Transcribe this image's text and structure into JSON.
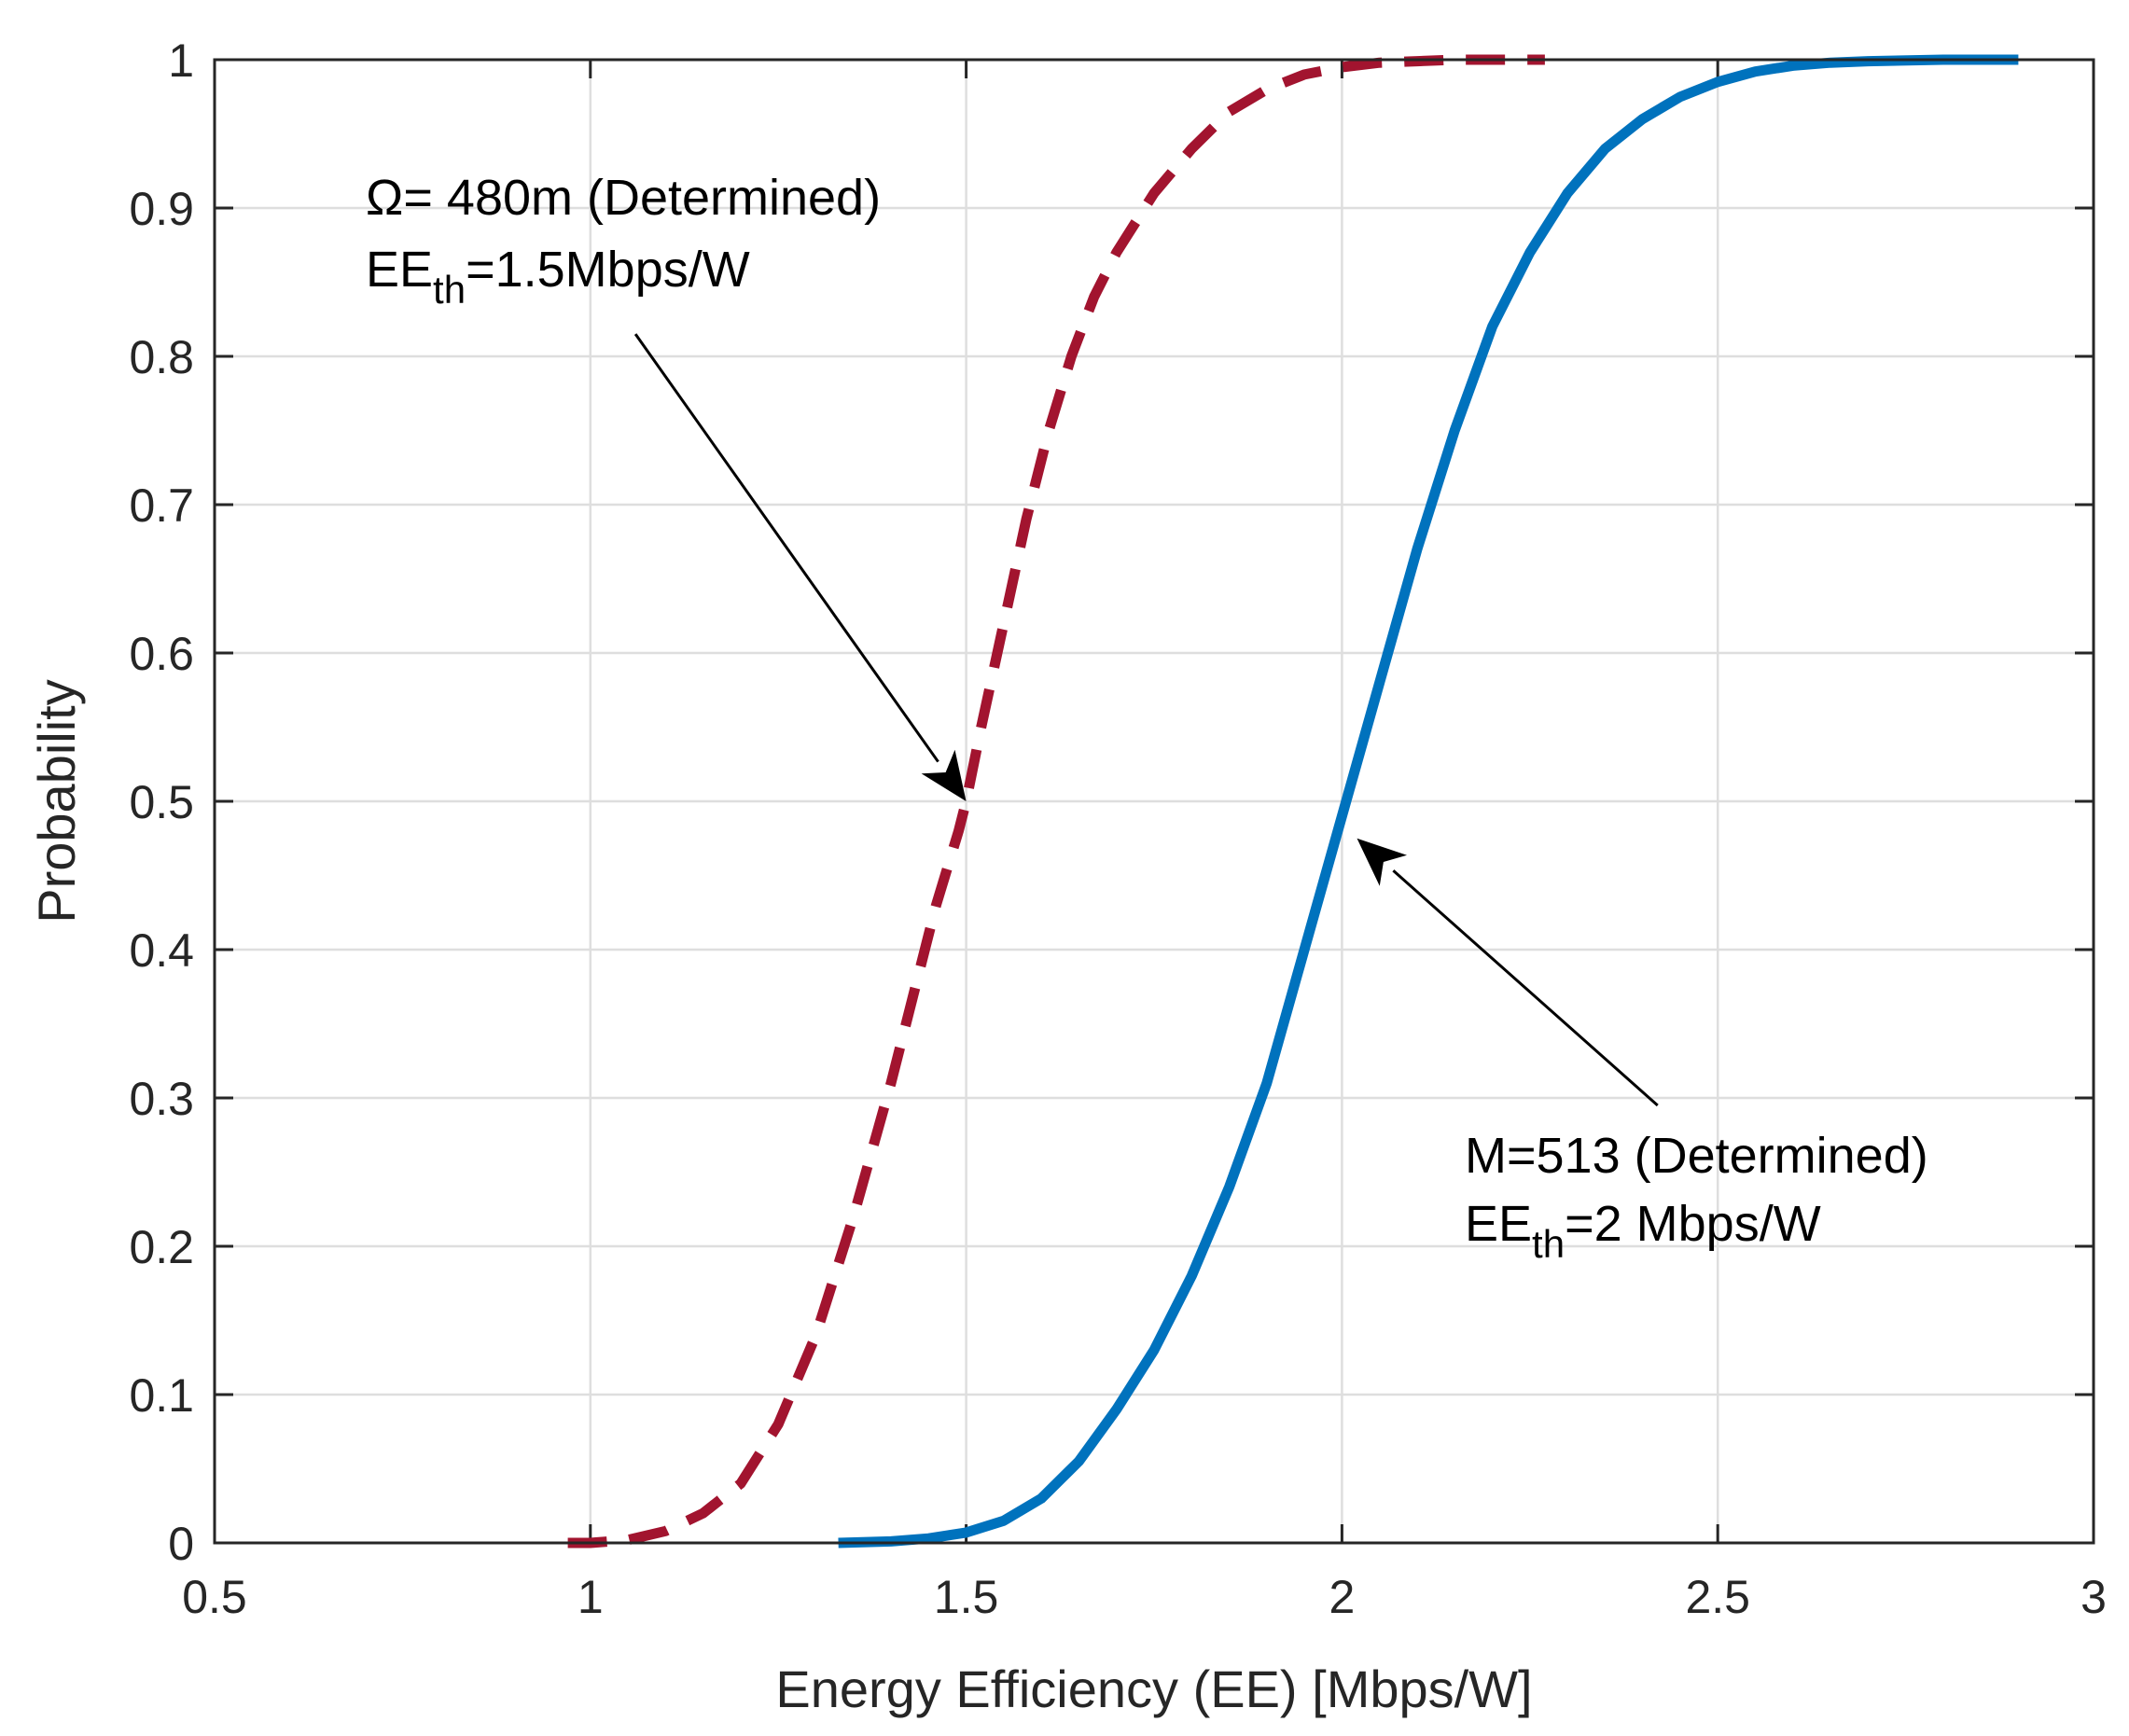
{
  "chart_data": {
    "type": "line",
    "title": "",
    "xlabel": "Energy Efficiency (EE) [Mbps/W]",
    "ylabel": "Probability",
    "xlim": [
      0.5,
      3
    ],
    "ylim": [
      0,
      1
    ],
    "grid": true,
    "xticks": [
      "0.5",
      "1",
      "1.5",
      "2",
      "2.5",
      "3"
    ],
    "yticks": [
      "0",
      "0.1",
      "0.2",
      "0.3",
      "0.4",
      "0.5",
      "0.6",
      "0.7",
      "0.8",
      "0.9",
      "1"
    ],
    "series": [
      {
        "name": "Omega = 480m (Determined), EE_th = 1.5 Mbps/W",
        "color": "#a2142f",
        "style": "dashed",
        "x": [
          0.97,
          1.0,
          1.05,
          1.1,
          1.15,
          1.2,
          1.25,
          1.3,
          1.35,
          1.4,
          1.43,
          1.46,
          1.49,
          1.5,
          1.52,
          1.55,
          1.58,
          1.61,
          1.64,
          1.67,
          1.7,
          1.75,
          1.8,
          1.85,
          1.9,
          1.95,
          2.0,
          2.05,
          2.1,
          2.15,
          2.2,
          2.27
        ],
        "y": [
          0.0,
          0.0,
          0.002,
          0.008,
          0.02,
          0.04,
          0.08,
          0.14,
          0.22,
          0.31,
          0.37,
          0.43,
          0.48,
          0.5,
          0.55,
          0.62,
          0.69,
          0.75,
          0.8,
          0.84,
          0.87,
          0.91,
          0.94,
          0.965,
          0.98,
          0.99,
          0.995,
          0.998,
          0.999,
          1.0,
          1.0,
          1.0
        ]
      },
      {
        "name": "M = 513 (Determined), EE_th = 2 Mbps/W",
        "color": "#0072bd",
        "style": "solid",
        "x": [
          1.33,
          1.4,
          1.45,
          1.5,
          1.55,
          1.6,
          1.65,
          1.7,
          1.75,
          1.8,
          1.85,
          1.9,
          1.95,
          2.0,
          2.05,
          2.1,
          2.15,
          2.2,
          2.25,
          2.3,
          2.35,
          2.4,
          2.45,
          2.5,
          2.55,
          2.6,
          2.65,
          2.7,
          2.8,
          2.9
        ],
        "y": [
          0.0,
          0.001,
          0.003,
          0.007,
          0.015,
          0.03,
          0.055,
          0.09,
          0.13,
          0.18,
          0.24,
          0.31,
          0.4,
          0.49,
          0.58,
          0.67,
          0.75,
          0.82,
          0.87,
          0.91,
          0.94,
          0.96,
          0.975,
          0.985,
          0.992,
          0.996,
          0.998,
          0.999,
          1.0,
          1.0
        ]
      }
    ],
    "annotations": [
      {
        "line1": "Ω= 480m (Determined)",
        "line2_main": "EE",
        "line2_sub": "th",
        "line2_rest": "=1.5Mbps/W",
        "arrow_tip": [
          1.5,
          0.5
        ],
        "arrow_tail": [
          1.06,
          0.815
        ]
      },
      {
        "line1": "M=513 (Determined)",
        "line2_main": "EE",
        "line2_sub": "th",
        "line2_rest": "=2 Mbps/W",
        "arrow_tip": [
          2.02,
          0.475
        ],
        "arrow_tail": [
          2.42,
          0.295
        ]
      }
    ]
  }
}
